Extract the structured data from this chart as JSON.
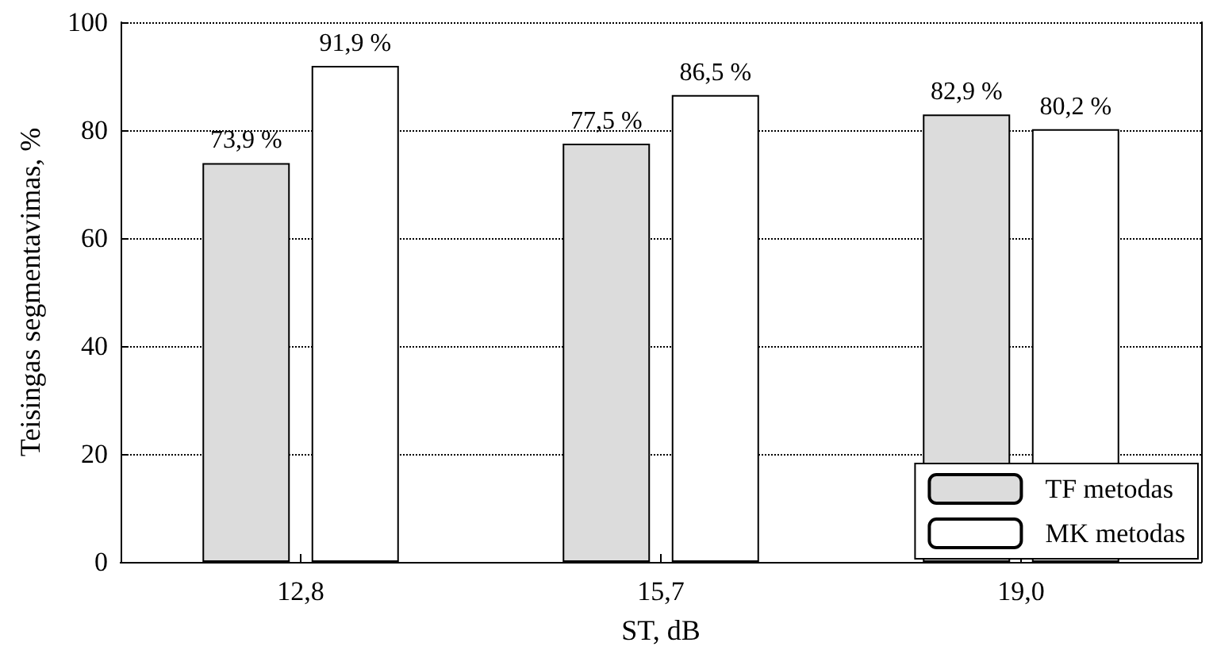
{
  "chart_data": {
    "type": "bar",
    "xlabel": "ST, dB",
    "ylabel": "Teisingas segmentavimas, %",
    "categories": [
      "12,8",
      "15,7",
      "19,0"
    ],
    "series": [
      {
        "name": "TF metodas",
        "color": "#dcdcdc",
        "values": [
          73.9,
          77.5,
          82.9
        ],
        "value_labels": [
          "73,9 %",
          "77,5 %",
          "82,9 %"
        ]
      },
      {
        "name": "MK metodas",
        "color": "#ffffff",
        "values": [
          91.9,
          86.5,
          80.2
        ],
        "value_labels": [
          "91,9 %",
          "86,5 %",
          "80,2 %"
        ]
      }
    ],
    "ylim": [
      0,
      100
    ],
    "yticks": [
      0,
      20,
      40,
      60,
      80,
      100
    ],
    "grid": "y",
    "legend": "bottom right"
  }
}
